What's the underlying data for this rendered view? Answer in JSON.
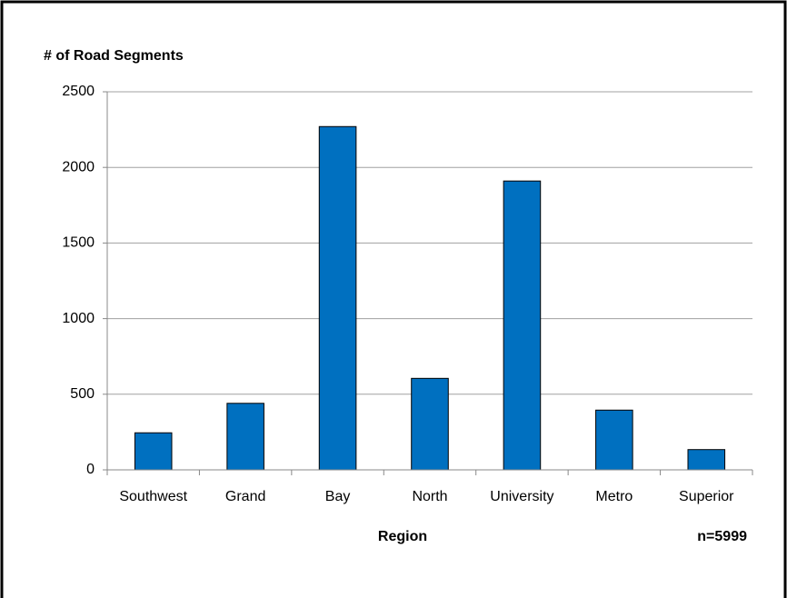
{
  "chart_data": {
    "type": "bar",
    "y_axis_title": "# of Road Segments",
    "x_axis_title": "Region",
    "annotation": "n=5999",
    "categories": [
      "Southwest",
      "Grand",
      "Bay",
      "North",
      "University",
      "Metro",
      "Superior"
    ],
    "values": [
      245,
      440,
      2270,
      605,
      1910,
      395,
      134
    ],
    "color": "#0070c0",
    "ylim": [
      0,
      2500
    ],
    "yticks": [
      0,
      500,
      1000,
      1500,
      2000,
      2500
    ],
    "grid": true
  }
}
